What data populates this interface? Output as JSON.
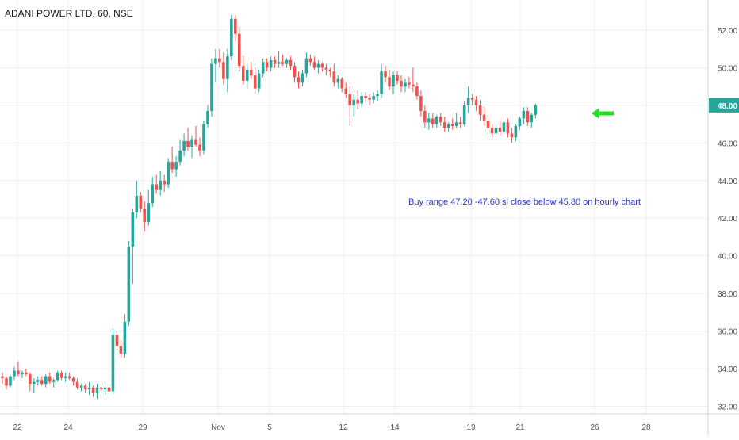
{
  "header": {
    "symbol": "ADANI POWER LTD, 60, NSE"
  },
  "colors": {
    "up": "#26a69a",
    "down": "#ef5350",
    "grid": "#eceff2",
    "axis_text": "#4c525e",
    "price_tag": "#26a69a",
    "annotation_text": "#2b35c9",
    "arrow": "#22dd22"
  },
  "annotation": {
    "text": "Buy range 47.20 -47.60 sl close below 45.80 on hourly chart"
  },
  "arrow_icon": "arrow-left-icon",
  "chart_data": {
    "type": "candlestick",
    "title": "ADANI POWER LTD, 60, NSE",
    "ylim": [
      31.6,
      53.6
    ],
    "y_ticks": [
      "32.00",
      "34.00",
      "36.00",
      "38.00",
      "40.00",
      "42.00",
      "44.00",
      "46.00",
      "48.00",
      "50.00",
      "52.00"
    ],
    "x_ticks": [
      "22",
      "24",
      "29",
      "Nov",
      "5",
      "12",
      "14",
      "19",
      "21",
      "26",
      "28"
    ],
    "last_price": "48.00",
    "candles": [
      {
        "o": 33.6,
        "h": 33.8,
        "l": 33.2,
        "c": 33.5
      },
      {
        "o": 33.5,
        "h": 33.6,
        "l": 32.9,
        "c": 33.1
      },
      {
        "o": 33.1,
        "h": 33.7,
        "l": 33.0,
        "c": 33.6
      },
      {
        "o": 33.6,
        "h": 34.1,
        "l": 33.4,
        "c": 33.9
      },
      {
        "o": 33.9,
        "h": 34.4,
        "l": 33.6,
        "c": 33.7
      },
      {
        "o": 33.7,
        "h": 33.9,
        "l": 33.5,
        "c": 33.8
      },
      {
        "o": 33.8,
        "h": 34.0,
        "l": 33.6,
        "c": 33.7
      },
      {
        "o": 33.7,
        "h": 33.8,
        "l": 32.8,
        "c": 33.2
      },
      {
        "o": 33.2,
        "h": 33.5,
        "l": 32.7,
        "c": 33.3
      },
      {
        "o": 33.3,
        "h": 33.6,
        "l": 33.1,
        "c": 33.4
      },
      {
        "o": 33.4,
        "h": 33.6,
        "l": 33.1,
        "c": 33.2
      },
      {
        "o": 33.2,
        "h": 33.7,
        "l": 33.0,
        "c": 33.6
      },
      {
        "o": 33.6,
        "h": 33.8,
        "l": 33.2,
        "c": 33.3
      },
      {
        "o": 33.3,
        "h": 33.5,
        "l": 33.0,
        "c": 33.4
      },
      {
        "o": 33.4,
        "h": 33.9,
        "l": 33.3,
        "c": 33.8
      },
      {
        "o": 33.8,
        "h": 33.9,
        "l": 33.4,
        "c": 33.5
      },
      {
        "o": 33.5,
        "h": 33.8,
        "l": 33.3,
        "c": 33.6
      },
      {
        "o": 33.6,
        "h": 33.8,
        "l": 33.4,
        "c": 33.5
      },
      {
        "o": 33.5,
        "h": 33.6,
        "l": 33.1,
        "c": 33.3
      },
      {
        "o": 33.3,
        "h": 33.5,
        "l": 32.9,
        "c": 33.0
      },
      {
        "o": 33.0,
        "h": 33.2,
        "l": 32.8,
        "c": 33.1
      },
      {
        "o": 33.1,
        "h": 33.2,
        "l": 32.7,
        "c": 32.9
      },
      {
        "o": 32.9,
        "h": 33.3,
        "l": 32.6,
        "c": 33.0
      },
      {
        "o": 33.0,
        "h": 33.1,
        "l": 32.5,
        "c": 32.7
      },
      {
        "o": 32.7,
        "h": 33.2,
        "l": 32.4,
        "c": 33.0
      },
      {
        "o": 33.0,
        "h": 33.2,
        "l": 32.8,
        "c": 32.9
      },
      {
        "o": 32.9,
        "h": 33.1,
        "l": 32.6,
        "c": 33.0
      },
      {
        "o": 33.0,
        "h": 33.2,
        "l": 32.6,
        "c": 32.8
      },
      {
        "o": 32.8,
        "h": 36.1,
        "l": 32.6,
        "c": 35.8
      },
      {
        "o": 35.8,
        "h": 36.0,
        "l": 35.0,
        "c": 35.2
      },
      {
        "o": 35.2,
        "h": 35.5,
        "l": 34.6,
        "c": 34.8
      },
      {
        "o": 34.8,
        "h": 36.9,
        "l": 34.6,
        "c": 36.5
      },
      {
        "o": 36.5,
        "h": 40.8,
        "l": 36.3,
        "c": 40.5
      },
      {
        "o": 40.5,
        "h": 42.5,
        "l": 38.5,
        "c": 42.3
      },
      {
        "o": 42.3,
        "h": 44.0,
        "l": 42.0,
        "c": 43.2
      },
      {
        "o": 43.2,
        "h": 43.4,
        "l": 42.3,
        "c": 42.5
      },
      {
        "o": 42.5,
        "h": 42.9,
        "l": 41.3,
        "c": 41.8
      },
      {
        "o": 41.8,
        "h": 43.5,
        "l": 41.6,
        "c": 42.8
      },
      {
        "o": 42.8,
        "h": 44.2,
        "l": 42.6,
        "c": 43.8
      },
      {
        "o": 43.8,
        "h": 44.3,
        "l": 43.3,
        "c": 43.5
      },
      {
        "o": 43.5,
        "h": 44.5,
        "l": 43.2,
        "c": 44.0
      },
      {
        "o": 44.0,
        "h": 44.3,
        "l": 43.4,
        "c": 43.8
      },
      {
        "o": 43.8,
        "h": 45.2,
        "l": 43.6,
        "c": 45.0
      },
      {
        "o": 45.0,
        "h": 45.8,
        "l": 44.4,
        "c": 44.6
      },
      {
        "o": 44.6,
        "h": 45.3,
        "l": 44.2,
        "c": 45.0
      },
      {
        "o": 45.0,
        "h": 46.2,
        "l": 44.8,
        "c": 45.6
      },
      {
        "o": 45.6,
        "h": 46.5,
        "l": 45.3,
        "c": 46.1
      },
      {
        "o": 46.1,
        "h": 46.8,
        "l": 45.6,
        "c": 45.8
      },
      {
        "o": 45.8,
        "h": 46.4,
        "l": 45.2,
        "c": 46.2
      },
      {
        "o": 46.2,
        "h": 46.9,
        "l": 45.8,
        "c": 45.9
      },
      {
        "o": 45.9,
        "h": 46.3,
        "l": 45.3,
        "c": 45.6
      },
      {
        "o": 45.6,
        "h": 47.2,
        "l": 45.4,
        "c": 47.0
      },
      {
        "o": 47.0,
        "h": 48.0,
        "l": 46.8,
        "c": 47.7
      },
      {
        "o": 47.7,
        "h": 50.5,
        "l": 47.4,
        "c": 50.2
      },
      {
        "o": 50.2,
        "h": 51.0,
        "l": 49.2,
        "c": 50.5
      },
      {
        "o": 50.5,
        "h": 51.0,
        "l": 50.0,
        "c": 50.3
      },
      {
        "o": 50.3,
        "h": 50.8,
        "l": 49.1,
        "c": 49.4
      },
      {
        "o": 49.4,
        "h": 51.0,
        "l": 48.7,
        "c": 50.6
      },
      {
        "o": 50.6,
        "h": 52.8,
        "l": 50.4,
        "c": 52.6
      },
      {
        "o": 52.6,
        "h": 52.8,
        "l": 51.4,
        "c": 51.8
      },
      {
        "o": 51.8,
        "h": 52.2,
        "l": 49.8,
        "c": 50.1
      },
      {
        "o": 50.1,
        "h": 50.6,
        "l": 49.1,
        "c": 49.3
      },
      {
        "o": 49.3,
        "h": 50.2,
        "l": 48.9,
        "c": 49.9
      },
      {
        "o": 49.9,
        "h": 50.3,
        "l": 49.4,
        "c": 49.6
      },
      {
        "o": 49.6,
        "h": 50.0,
        "l": 48.6,
        "c": 48.9
      },
      {
        "o": 48.9,
        "h": 49.9,
        "l": 48.7,
        "c": 49.7
      },
      {
        "o": 49.7,
        "h": 50.5,
        "l": 49.5,
        "c": 50.3
      },
      {
        "o": 50.3,
        "h": 50.5,
        "l": 49.8,
        "c": 50.0
      },
      {
        "o": 50.0,
        "h": 50.6,
        "l": 49.8,
        "c": 50.4
      },
      {
        "o": 50.4,
        "h": 50.6,
        "l": 50.0,
        "c": 50.2
      },
      {
        "o": 50.2,
        "h": 50.9,
        "l": 50.0,
        "c": 50.3
      },
      {
        "o": 50.3,
        "h": 50.7,
        "l": 50.1,
        "c": 50.2
      },
      {
        "o": 50.2,
        "h": 50.5,
        "l": 50.0,
        "c": 50.4
      },
      {
        "o": 50.4,
        "h": 50.6,
        "l": 49.9,
        "c": 50.1
      },
      {
        "o": 50.1,
        "h": 50.3,
        "l": 49.2,
        "c": 49.5
      },
      {
        "o": 49.5,
        "h": 49.8,
        "l": 48.9,
        "c": 49.2
      },
      {
        "o": 49.2,
        "h": 49.9,
        "l": 49.0,
        "c": 49.7
      },
      {
        "o": 49.7,
        "h": 50.8,
        "l": 49.5,
        "c": 50.5
      },
      {
        "o": 50.5,
        "h": 50.7,
        "l": 50.1,
        "c": 50.3
      },
      {
        "o": 50.3,
        "h": 50.6,
        "l": 49.9,
        "c": 50.0
      },
      {
        "o": 50.0,
        "h": 50.4,
        "l": 49.7,
        "c": 50.2
      },
      {
        "o": 50.2,
        "h": 50.3,
        "l": 49.8,
        "c": 50.0
      },
      {
        "o": 50.0,
        "h": 50.2,
        "l": 49.6,
        "c": 49.9
      },
      {
        "o": 49.9,
        "h": 50.0,
        "l": 49.5,
        "c": 49.8
      },
      {
        "o": 49.8,
        "h": 50.2,
        "l": 49.0,
        "c": 49.2
      },
      {
        "o": 49.2,
        "h": 49.6,
        "l": 48.9,
        "c": 49.4
      },
      {
        "o": 49.4,
        "h": 49.5,
        "l": 48.7,
        "c": 48.9
      },
      {
        "o": 48.9,
        "h": 49.2,
        "l": 48.4,
        "c": 48.6
      },
      {
        "o": 48.6,
        "h": 49.0,
        "l": 46.9,
        "c": 48.0
      },
      {
        "o": 48.0,
        "h": 48.6,
        "l": 47.4,
        "c": 48.3
      },
      {
        "o": 48.3,
        "h": 48.8,
        "l": 47.8,
        "c": 48.1
      },
      {
        "o": 48.1,
        "h": 48.7,
        "l": 47.9,
        "c": 48.5
      },
      {
        "o": 48.5,
        "h": 48.7,
        "l": 48.2,
        "c": 48.4
      },
      {
        "o": 48.4,
        "h": 48.6,
        "l": 48.0,
        "c": 48.3
      },
      {
        "o": 48.3,
        "h": 48.7,
        "l": 48.1,
        "c": 48.5
      },
      {
        "o": 48.5,
        "h": 48.8,
        "l": 48.2,
        "c": 48.6
      },
      {
        "o": 48.6,
        "h": 50.2,
        "l": 48.4,
        "c": 49.8
      },
      {
        "o": 49.8,
        "h": 50.1,
        "l": 49.2,
        "c": 49.5
      },
      {
        "o": 49.5,
        "h": 49.9,
        "l": 48.8,
        "c": 49.0
      },
      {
        "o": 49.0,
        "h": 49.8,
        "l": 48.6,
        "c": 49.6
      },
      {
        "o": 49.6,
        "h": 49.8,
        "l": 49.1,
        "c": 49.3
      },
      {
        "o": 49.3,
        "h": 49.6,
        "l": 48.7,
        "c": 49.0
      },
      {
        "o": 49.0,
        "h": 49.4,
        "l": 48.7,
        "c": 49.2
      },
      {
        "o": 49.2,
        "h": 49.5,
        "l": 48.9,
        "c": 49.1
      },
      {
        "o": 49.1,
        "h": 50.0,
        "l": 48.7,
        "c": 49.0
      },
      {
        "o": 49.0,
        "h": 49.2,
        "l": 48.3,
        "c": 48.5
      },
      {
        "o": 48.5,
        "h": 48.8,
        "l": 47.4,
        "c": 47.7
      },
      {
        "o": 47.7,
        "h": 48.0,
        "l": 46.8,
        "c": 47.1
      },
      {
        "o": 47.1,
        "h": 47.6,
        "l": 46.7,
        "c": 47.3
      },
      {
        "o": 47.3,
        "h": 47.6,
        "l": 46.8,
        "c": 47.0
      },
      {
        "o": 47.0,
        "h": 47.5,
        "l": 46.8,
        "c": 47.4
      },
      {
        "o": 47.4,
        "h": 47.6,
        "l": 46.9,
        "c": 47.1
      },
      {
        "o": 47.1,
        "h": 47.4,
        "l": 46.6,
        "c": 46.8
      },
      {
        "o": 46.8,
        "h": 47.1,
        "l": 46.6,
        "c": 47.0
      },
      {
        "o": 47.0,
        "h": 47.3,
        "l": 46.7,
        "c": 46.9
      },
      {
        "o": 46.9,
        "h": 47.6,
        "l": 46.8,
        "c": 47.1
      },
      {
        "o": 47.1,
        "h": 47.4,
        "l": 46.8,
        "c": 47.0
      },
      {
        "o": 47.0,
        "h": 48.2,
        "l": 46.9,
        "c": 48.0
      },
      {
        "o": 48.0,
        "h": 49.0,
        "l": 47.6,
        "c": 48.4
      },
      {
        "o": 48.4,
        "h": 48.6,
        "l": 48.0,
        "c": 48.3
      },
      {
        "o": 48.3,
        "h": 48.5,
        "l": 47.7,
        "c": 48.0
      },
      {
        "o": 48.0,
        "h": 48.3,
        "l": 47.2,
        "c": 47.5
      },
      {
        "o": 47.5,
        "h": 47.9,
        "l": 46.9,
        "c": 47.2
      },
      {
        "o": 47.2,
        "h": 47.5,
        "l": 46.5,
        "c": 46.8
      },
      {
        "o": 46.8,
        "h": 47.0,
        "l": 46.3,
        "c": 46.5
      },
      {
        "o": 46.5,
        "h": 47.0,
        "l": 46.3,
        "c": 46.8
      },
      {
        "o": 46.8,
        "h": 47.2,
        "l": 46.4,
        "c": 46.6
      },
      {
        "o": 46.6,
        "h": 47.3,
        "l": 46.5,
        "c": 47.1
      },
      {
        "o": 47.1,
        "h": 47.3,
        "l": 46.3,
        "c": 46.5
      },
      {
        "o": 46.5,
        "h": 46.8,
        "l": 46.0,
        "c": 46.3
      },
      {
        "o": 46.3,
        "h": 47.0,
        "l": 46.1,
        "c": 46.9
      },
      {
        "o": 46.9,
        "h": 47.4,
        "l": 46.7,
        "c": 47.3
      },
      {
        "o": 47.3,
        "h": 47.9,
        "l": 47.0,
        "c": 47.7
      },
      {
        "o": 47.7,
        "h": 47.9,
        "l": 46.9,
        "c": 47.1
      },
      {
        "o": 47.1,
        "h": 47.6,
        "l": 46.8,
        "c": 47.5
      },
      {
        "o": 47.5,
        "h": 48.1,
        "l": 47.3,
        "c": 48.0
      }
    ]
  }
}
